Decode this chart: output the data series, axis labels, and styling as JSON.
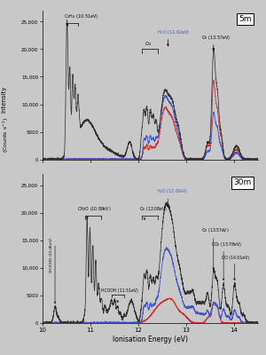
{
  "xlabel": "Ionisation Energy (eV)",
  "ylabel": "Intensity",
  "ylabel2": "(Counts s⁻¹)",
  "xlim": [
    10,
    14.5
  ],
  "ylim": [
    0,
    27000
  ],
  "yticks": [
    0,
    5000,
    10000,
    15000,
    20000,
    25000
  ],
  "ytick_labels": [
    "0",
    "5000",
    "10,000",
    "15,000",
    "20,000",
    "25,000"
  ],
  "xticks": [
    10,
    11,
    12,
    13,
    14
  ],
  "label_5m": "5m",
  "label_30m": "30m",
  "bg_color": "#c8c8c8",
  "plot_bg": "#c8c8c8",
  "line_black": "#333333",
  "line_blue": "#4455cc",
  "line_red": "#cc3333"
}
